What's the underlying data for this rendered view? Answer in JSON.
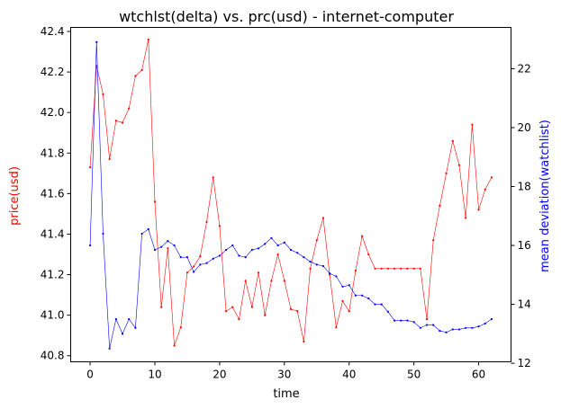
{
  "chart_data": {
    "type": "line",
    "title": "wtchlst(delta) vs. prc(usd) - internet-computer",
    "xlabel": "time",
    "ylabel_left": "price(usd)",
    "ylabel_right": "mean deviation(watchlist)",
    "xlim": [
      -3,
      65
    ],
    "ylim_left": [
      40.77,
      42.42
    ],
    "ylim_right": [
      12.05,
      23.4
    ],
    "x_ticks": [
      0,
      10,
      20,
      30,
      40,
      50,
      60
    ],
    "y_left_ticks": [
      40.8,
      41.0,
      41.2,
      41.4,
      41.6,
      41.8,
      42.0,
      42.2,
      42.4
    ],
    "y_right_ticks": [
      12,
      14,
      16,
      18,
      20,
      22
    ],
    "colors": {
      "price": "#ff0000",
      "watchlist": "#0000ff"
    },
    "series": [
      {
        "name": "price(usd)",
        "axis": "left",
        "values": [
          41.73,
          42.23,
          42.09,
          41.77,
          41.96,
          41.95,
          42.02,
          42.18,
          42.21,
          42.36,
          41.56,
          41.04,
          41.33,
          40.85,
          40.94,
          41.21,
          41.24,
          41.29,
          41.46,
          41.68,
          41.44,
          41.02,
          41.04,
          40.98,
          41.17,
          41.04,
          41.21,
          41.0,
          41.17,
          41.3,
          41.17,
          41.03,
          41.02,
          40.87,
          41.23,
          41.37,
          41.48,
          41.2,
          40.94,
          41.07,
          41.02,
          41.22,
          41.39,
          41.3,
          41.23,
          41.23,
          41.23,
          41.23,
          41.23,
          41.23,
          41.23,
          41.23,
          40.98,
          41.37,
          41.54,
          41.7,
          41.86,
          41.74,
          41.48,
          41.94,
          41.52,
          41.62,
          41.68
        ]
      },
      {
        "name": "mean deviation(watchlist)",
        "axis": "right",
        "values": [
          16.0,
          22.9,
          16.4,
          12.5,
          13.5,
          13.0,
          13.5,
          13.2,
          16.4,
          16.55,
          15.85,
          15.95,
          16.15,
          16.0,
          15.6,
          15.6,
          15.1,
          15.35,
          15.4,
          15.55,
          15.65,
          15.85,
          16.0,
          15.65,
          15.6,
          15.85,
          15.9,
          16.05,
          16.25,
          16.0,
          16.1,
          15.85,
          15.75,
          15.6,
          15.45,
          15.35,
          15.3,
          15.05,
          14.95,
          14.6,
          14.65,
          14.3,
          14.3,
          14.2,
          14.0,
          14.0,
          13.75,
          13.45,
          13.45,
          13.45,
          13.4,
          13.2,
          13.3,
          13.3,
          13.1,
          13.05,
          13.15,
          13.15,
          13.2,
          13.2,
          13.25,
          13.35,
          13.5
        ]
      }
    ]
  }
}
